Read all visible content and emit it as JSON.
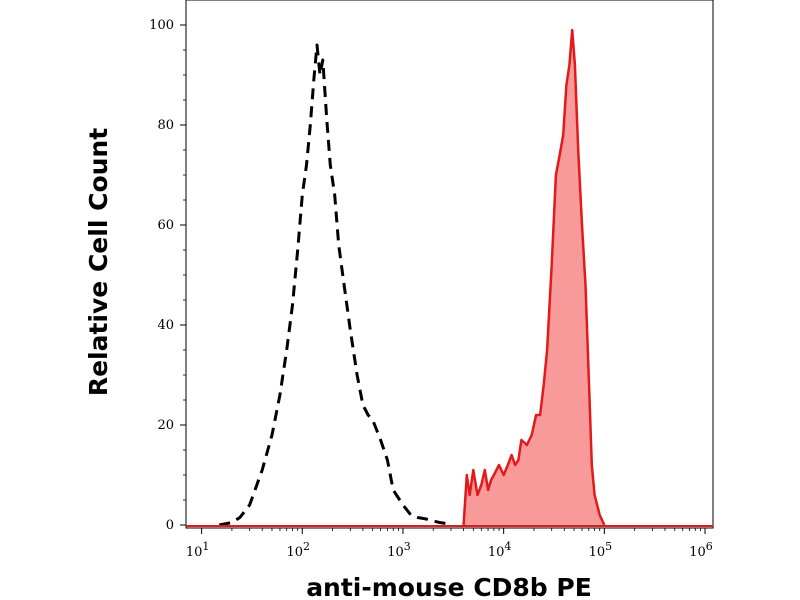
{
  "chart_data": {
    "type": "area",
    "xlabel": "anti-mouse CD8b PE",
    "ylabel": "Relative Cell Count",
    "x_scale": "log",
    "xlim": [
      7,
      1200000
    ],
    "ylim": [
      0,
      100
    ],
    "x_ticks": [
      {
        "value": 10,
        "base": "10",
        "exp": "1"
      },
      {
        "value": 100,
        "base": "10",
        "exp": "2"
      },
      {
        "value": 1000,
        "base": "10",
        "exp": "3"
      },
      {
        "value": 10000,
        "base": "10",
        "exp": "4"
      },
      {
        "value": 100000,
        "base": "10",
        "exp": "5"
      },
      {
        "value": 1000000,
        "base": "10",
        "exp": "6"
      }
    ],
    "y_ticks": [
      "0",
      "20",
      "40",
      "60",
      "80",
      "100"
    ],
    "grid": false,
    "series": [
      {
        "style": "dashed",
        "color": "#000000",
        "x": [
          15,
          20,
          24,
          30,
          40,
          50,
          60,
          70,
          80,
          90,
          100,
          110,
          120,
          130,
          140,
          150,
          160,
          175,
          190,
          210,
          230,
          260,
          300,
          350,
          400,
          450,
          500,
          600,
          700,
          800,
          1000,
          1200,
          1400,
          1700,
          2000,
          2300,
          2700
        ],
        "y": [
          0,
          0.5,
          1.5,
          4,
          11,
          18,
          26,
          35,
          44,
          55,
          66,
          72,
          80,
          89,
          96,
          90,
          93,
          81,
          72,
          66,
          56,
          48,
          39,
          30,
          24,
          22,
          21,
          17,
          13,
          7,
          4,
          2,
          1.5,
          1.2,
          0.8,
          0.5,
          0.3
        ]
      },
      {
        "style": "filled",
        "color": "#e31a1c",
        "fill": "#f89a9a",
        "x": [
          4000,
          4300,
          4600,
          5000,
          5500,
          6000,
          6500,
          7000,
          7500,
          8000,
          9000,
          10000,
          11000,
          12000,
          13000,
          14000,
          15000,
          17000,
          19000,
          21000,
          23000,
          25000,
          27000,
          30000,
          33000,
          36000,
          39000,
          42000,
          45000,
          48000,
          51000,
          55000,
          60000,
          65000,
          70000,
          75000,
          80000,
          90000,
          100000
        ],
        "y": [
          0,
          10,
          6,
          11,
          6,
          8,
          11,
          7,
          9,
          10,
          12,
          10,
          12,
          14,
          12,
          13,
          17,
          16,
          18,
          22,
          22,
          28,
          35,
          52,
          70,
          74,
          78,
          88,
          92,
          99,
          92,
          75,
          60,
          48,
          30,
          12,
          6,
          2,
          0
        ]
      }
    ]
  }
}
